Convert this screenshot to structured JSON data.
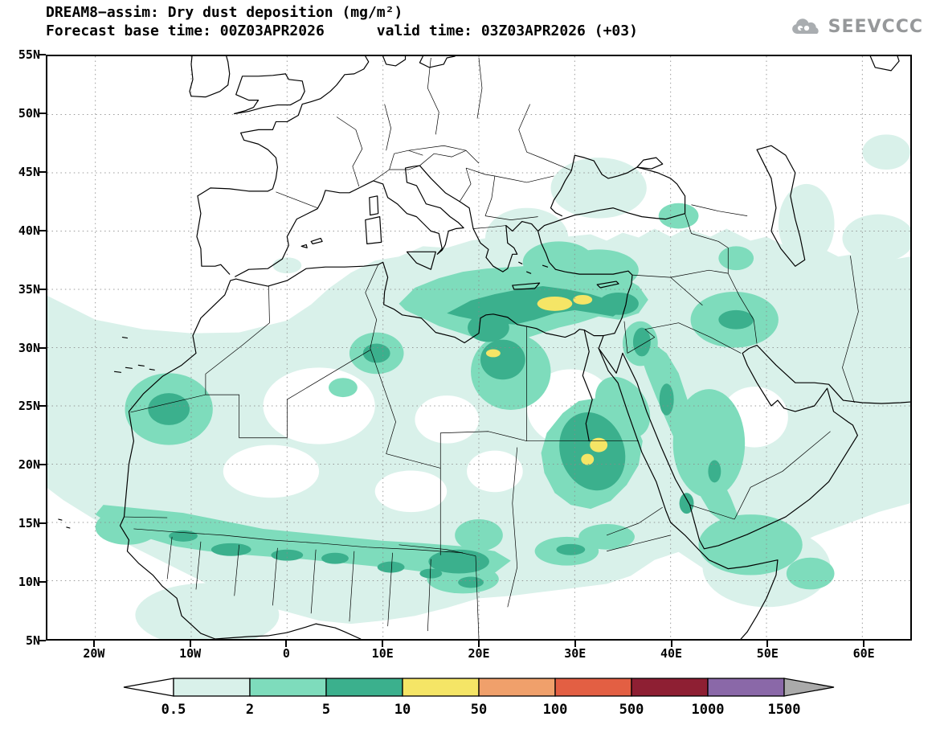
{
  "header": {
    "title": "DREAM8−assim: Dry dust deposition (mg/m²)",
    "subtitle": "Forecast base time: 00Z03APR2026      valid time: 03Z03APR2026 (+03)",
    "logo_text": "SEEVCCC"
  },
  "chart_data": {
    "type": "heatmap",
    "title": "DREAM8−assim: Dry dust deposition (mg/m²)",
    "model": "DREAM8-assim",
    "variable": "Dry dust deposition",
    "units": "mg/m²",
    "forecast_base_time": "00Z03APR2026",
    "valid_time": "03Z03APR2026",
    "forecast_hour": "+03",
    "map_extent": {
      "lon": "25W to 65E",
      "lat": "5N to 55N"
    },
    "grid": "dotted graticule every 10 deg lon / 5 deg lat",
    "x_axis": {
      "range_deg": [
        -25,
        65
      ],
      "ticks": [
        {
          "label": "20W",
          "deg": -20
        },
        {
          "label": "10W",
          "deg": -10
        },
        {
          "label": "0",
          "deg": 0
        },
        {
          "label": "10E",
          "deg": 10
        },
        {
          "label": "20E",
          "deg": 20
        },
        {
          "label": "30E",
          "deg": 30
        },
        {
          "label": "40E",
          "deg": 40
        },
        {
          "label": "50E",
          "deg": 50
        },
        {
          "label": "60E",
          "deg": 60
        }
      ]
    },
    "y_axis": {
      "range_deg": [
        5,
        55
      ],
      "ticks": [
        {
          "label": "5N",
          "deg": 5
        },
        {
          "label": "10N",
          "deg": 10
        },
        {
          "label": "15N",
          "deg": 15
        },
        {
          "label": "20N",
          "deg": 20
        },
        {
          "label": "25N",
          "deg": 25
        },
        {
          "label": "30N",
          "deg": 30
        },
        {
          "label": "35N",
          "deg": 35
        },
        {
          "label": "40N",
          "deg": 40
        },
        {
          "label": "45N",
          "deg": 45
        },
        {
          "label": "50N",
          "deg": 50
        },
        {
          "label": "55N",
          "deg": 55
        }
      ]
    },
    "colorbar": {
      "orientation": "horizontal",
      "levels": [
        0.5,
        2,
        5,
        10,
        50,
        100,
        500,
        1000,
        1500
      ],
      "labels": [
        "0.5",
        "2",
        "5",
        "10",
        "50",
        "100",
        "500",
        "1000",
        "1500"
      ],
      "colors": [
        "#ffffff",
        "#d9f1ea",
        "#7edcbc",
        "#3bb08d",
        "#f5e566",
        "#f0a06b",
        "#e35f43",
        "#8e1f33",
        "#8a68a8",
        "#aaaaaa"
      ]
    },
    "regions": [
      {
        "value_mg_m2": "2–10, locally 10–50",
        "area": "Libyan/Egyptian Mediterranean coast extending over sea south of Crete",
        "approx_lat": "29N–37N",
        "approx_lon": "10E–36E"
      },
      {
        "value_mg_m2": "10–50 (maxima)",
        "area": "south of Crete, Gulf of Sidra coast and inland east Libya",
        "approx_lat": "29N–34N",
        "approx_lon": "16E–28E"
      },
      {
        "value_mg_m2": "2–10, locally 10–50",
        "area": "northern Sudan / Nile valley blob",
        "approx_lat": "17N–24N",
        "approx_lon": "28E–34E"
      },
      {
        "value_mg_m2": "2–10",
        "area": "Sahel belt from Senegal to Chad",
        "approx_lat": "11N–16N",
        "approx_lon": "17W–20E"
      },
      {
        "value_mg_m2": "2–10",
        "area": "coastal Mauritania / Western Sahara",
        "approx_lat": "22N–27N",
        "approx_lon": "18W–9W"
      },
      {
        "value_mg_m2": "2–10",
        "area": "Red Sea rim, NW Saudi Arabia and Jordan",
        "approx_lat": "13N–31N",
        "approx_lon": "34E–45E"
      },
      {
        "value_mg_m2": "2–5",
        "area": "Mesopotamia (Iraq) and spots over Atlas (Algeria)",
        "approx_lat": "28N–34N",
        "approx_lon": "5E–48E"
      },
      {
        "value_mg_m2": "0.5–2",
        "area": "widespread background: Sahara, Mediterranean, SE Europe, Anatolia, Caspian area, Arabian peninsula, Horn of Africa",
        "approx_lat": "8N–47N",
        "approx_lon": "25W–65E"
      }
    ]
  }
}
